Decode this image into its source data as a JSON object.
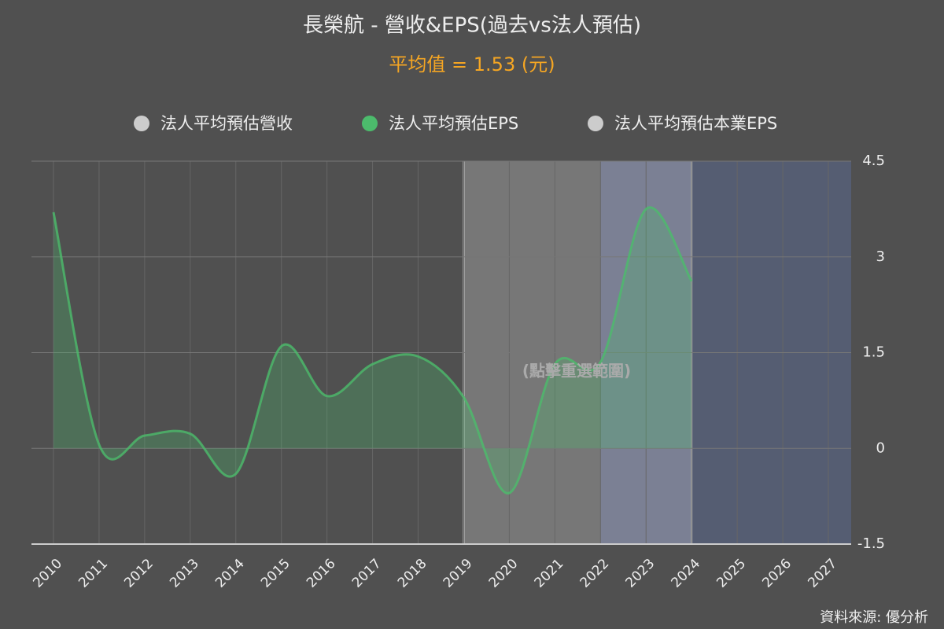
{
  "chart_data": {
    "type": "area",
    "title": "長榮航 - 營收&EPS(過去vs法人預估)",
    "subtitle": "平均值 = 1.53 (元)",
    "annotation": "(點擊重選範圍)",
    "source": "資料來源: 優分析",
    "categories": [
      "2010",
      "2011",
      "2012",
      "2013",
      "2014",
      "2015",
      "2016",
      "2017",
      "2018",
      "2019",
      "2020",
      "2021",
      "2022",
      "2023",
      "2024",
      "2025",
      "2026",
      "2027"
    ],
    "series": [
      {
        "name": "法人平均預估營收",
        "color": "#cccccc",
        "values": [
          null,
          null,
          null,
          null,
          null,
          null,
          null,
          null,
          null,
          null,
          null,
          null,
          null,
          null,
          null,
          null,
          null,
          null
        ]
      },
      {
        "name": "法人平均預估EPS",
        "color": "#4cbb6c",
        "values": [
          3.7,
          0.06,
          0.2,
          0.23,
          -0.4,
          1.6,
          0.82,
          1.32,
          1.44,
          0.8,
          -0.7,
          1.32,
          1.35,
          3.75,
          2.62,
          null,
          null,
          null
        ]
      },
      {
        "name": "法人平均預估本業EPS",
        "color": "#cccccc",
        "values": [
          null,
          null,
          null,
          null,
          null,
          null,
          null,
          null,
          null,
          null,
          null,
          null,
          null,
          null,
          null,
          null,
          null,
          null
        ]
      }
    ],
    "bands": [
      {
        "from": "2019",
        "to": "2022",
        "color": "#777777"
      },
      {
        "from": "2022",
        "to": "2024",
        "color": "#7b8094"
      },
      {
        "from": "2024",
        "to": "2027",
        "color": "#555d72"
      }
    ],
    "ylim": [
      -1.5,
      4.5
    ],
    "yticks": [
      -1.5,
      0,
      1.5,
      3,
      4.5
    ],
    "grid": true
  }
}
